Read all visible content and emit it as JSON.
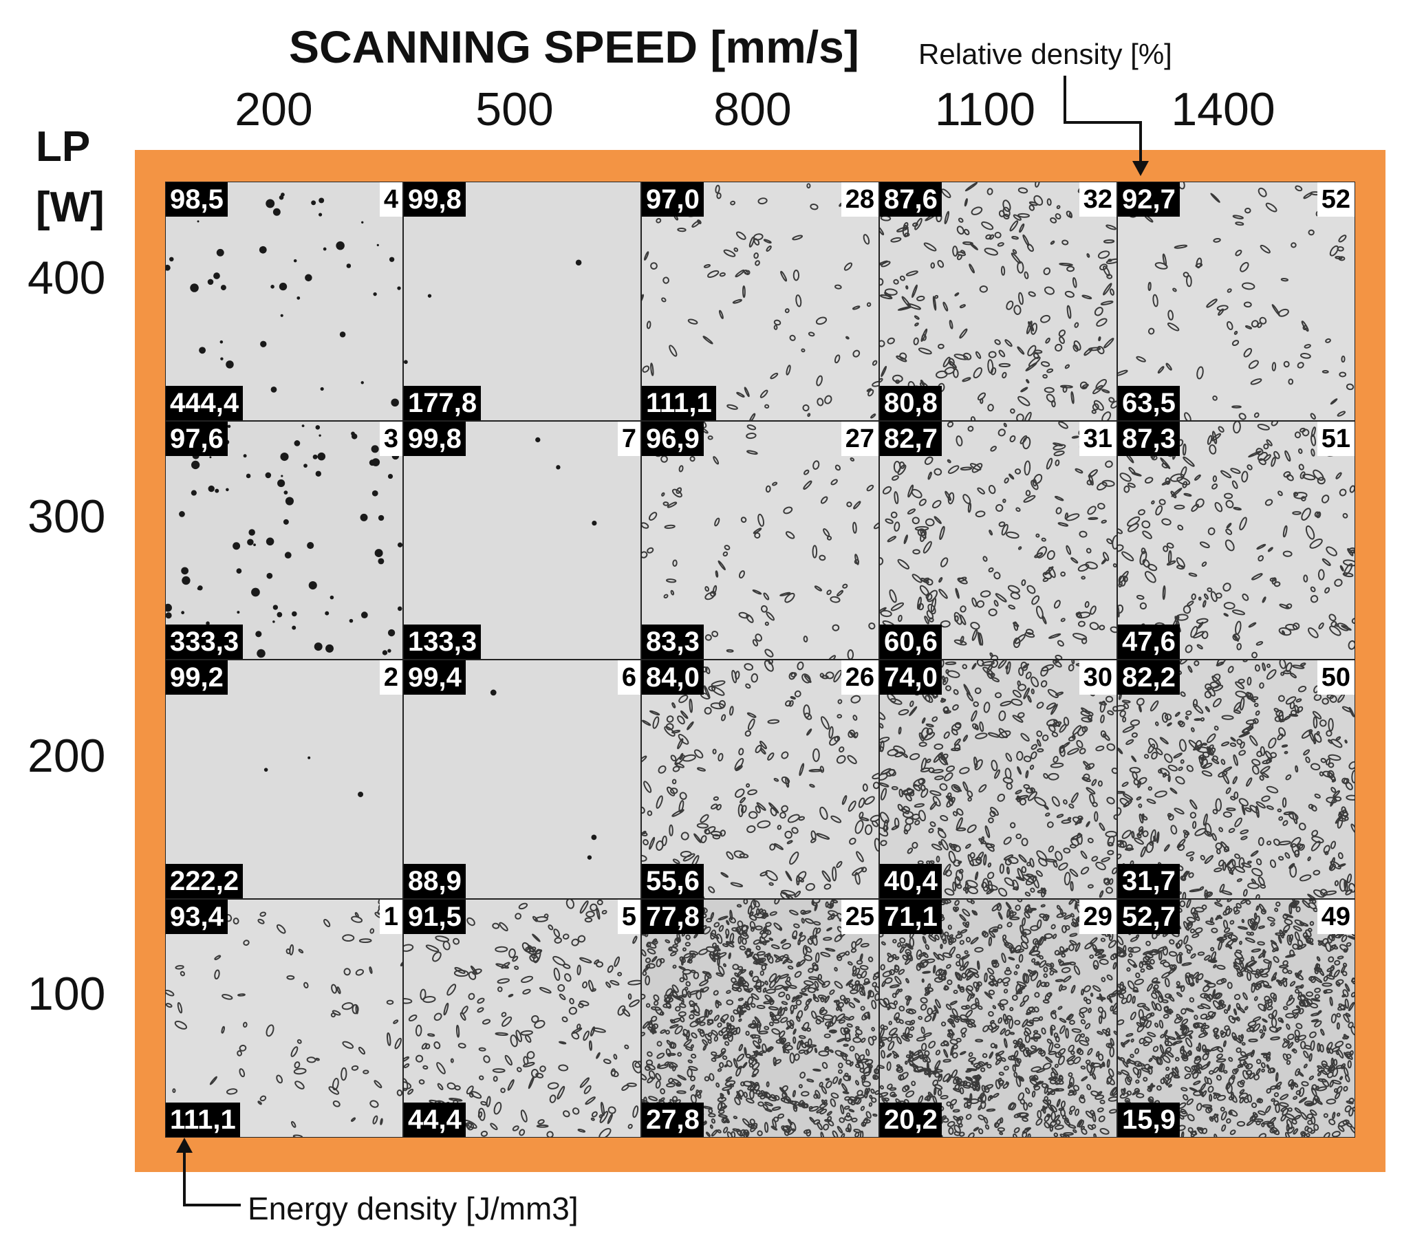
{
  "header": {
    "title": "SCANNING SPEED [mm/s]",
    "speeds": [
      "200",
      "500",
      "800",
      "1100",
      "1400"
    ]
  },
  "side": {
    "lp_label_line1": "LP",
    "lp_label_line2": "[W]",
    "powers": [
      "400",
      "300",
      "200",
      "100"
    ]
  },
  "annotations": {
    "relative_density": "Relative density [%]",
    "energy_density": "Energy density [J/mm3]"
  },
  "colors": {
    "frame": "#f39444",
    "label_bg": "#000000",
    "label_fg": "#ffffff"
  },
  "grid": [
    [
      {
        "rd": "98,5",
        "ed": "444,4",
        "id": "4",
        "pores": "round-sparse"
      },
      {
        "rd": "99,8",
        "ed": "177,8",
        "id": "",
        "pores": "clean"
      },
      {
        "rd": "97,0",
        "ed": "111,1",
        "id": "28",
        "pores": "irregular-sparse"
      },
      {
        "rd": "87,6",
        "ed": "80,8",
        "id": "32",
        "pores": "irregular-medium"
      },
      {
        "rd": "92,7",
        "ed": "63,5",
        "id": "52",
        "pores": "irregular-sparse"
      }
    ],
    [
      {
        "rd": "97,6",
        "ed": "333,3",
        "id": "3",
        "pores": "round-medium"
      },
      {
        "rd": "99,8",
        "ed": "133,3",
        "id": "7",
        "pores": "clean"
      },
      {
        "rd": "96,9",
        "ed": "83,3",
        "id": "27",
        "pores": "irregular-sparse"
      },
      {
        "rd": "82,7",
        "ed": "60,6",
        "id": "31",
        "pores": "irregular-medium"
      },
      {
        "rd": "87,3",
        "ed": "47,6",
        "id": "51",
        "pores": "irregular-medium"
      }
    ],
    [
      {
        "rd": "99,2",
        "ed": "222,2",
        "id": "2",
        "pores": "clean"
      },
      {
        "rd": "99,4",
        "ed": "88,9",
        "id": "6",
        "pores": "clean"
      },
      {
        "rd": "84,0",
        "ed": "55,6",
        "id": "26",
        "pores": "irregular-medium"
      },
      {
        "rd": "74,0",
        "ed": "40,4",
        "id": "30",
        "pores": "irregular-dense"
      },
      {
        "rd": "82,2",
        "ed": "31,7",
        "id": "50",
        "pores": "irregular-dense"
      }
    ],
    [
      {
        "rd": "93,4",
        "ed": "111,1",
        "id": "1",
        "pores": "irregular-sparse"
      },
      {
        "rd": "91,5",
        "ed": "44,4",
        "id": "5",
        "pores": "irregular-medium"
      },
      {
        "rd": "77,8",
        "ed": "27,8",
        "id": "25",
        "pores": "irregular-verydense"
      },
      {
        "rd": "71,1",
        "ed": "20,2",
        "id": "29",
        "pores": "irregular-verydense"
      },
      {
        "rd": "52,7",
        "ed": "15,9",
        "id": "49",
        "pores": "irregular-verydense"
      }
    ]
  ]
}
